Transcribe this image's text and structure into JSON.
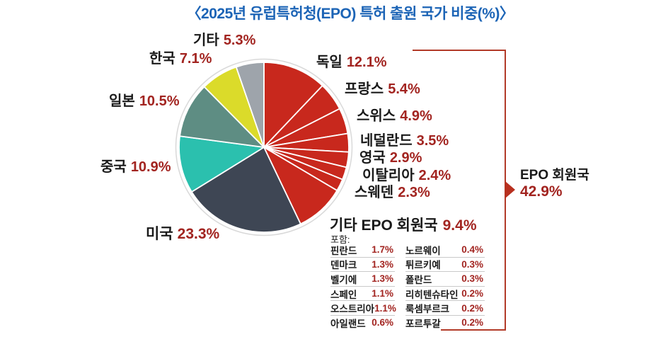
{
  "title": "〈2025년 유럽특허청(EPO) 특허 출원 국가 비중(%)〉",
  "chart_data": {
    "type": "pie",
    "title": "2025년 유럽특허청(EPO) 특허 출원 국가 비중(%)",
    "start_angle_deg_from_12oclock": 0,
    "direction": "clockwise",
    "slices": [
      {
        "label": "독일",
        "value": 12.1,
        "color": "#C8281D",
        "group": "EPO 회원국"
      },
      {
        "label": "프랑스",
        "value": 5.4,
        "color": "#C8281D",
        "group": "EPO 회원국"
      },
      {
        "label": "스위스",
        "value": 4.9,
        "color": "#C8281D",
        "group": "EPO 회원국"
      },
      {
        "label": "네덜란드",
        "value": 3.5,
        "color": "#C8281D",
        "group": "EPO 회원국"
      },
      {
        "label": "영국",
        "value": 2.9,
        "color": "#C8281D",
        "group": "EPO 회원국"
      },
      {
        "label": "이탈리아",
        "value": 2.4,
        "color": "#C8281D",
        "group": "EPO 회원국"
      },
      {
        "label": "스웨덴",
        "value": 2.3,
        "color": "#C8281D",
        "group": "EPO 회원국"
      },
      {
        "label": "기타 EPO 회원국",
        "value": 9.4,
        "color": "#C8281D",
        "group": "EPO 회원국"
      },
      {
        "label": "미국",
        "value": 23.3,
        "color": "#3E4654",
        "group": "비회원국"
      },
      {
        "label": "중국",
        "value": 10.9,
        "color": "#2BC0AE",
        "group": "비회원국"
      },
      {
        "label": "일본",
        "value": 10.5,
        "color": "#5E8D83",
        "group": "비회원국"
      },
      {
        "label": "한국",
        "value": 7.1,
        "color": "#DBDB2A",
        "group": "비회원국"
      },
      {
        "label": "기타",
        "value": 5.3,
        "color": "#9EA4AB",
        "group": "비회원국"
      }
    ],
    "annotation": {
      "label": "EPO 회원국",
      "value_pct": 42.9
    }
  },
  "callouts": {
    "etc": {
      "name": "기타",
      "pct": "5.3%"
    },
    "korea": {
      "name": "한국",
      "pct": "7.1%"
    },
    "japan": {
      "name": "일본",
      "pct": "10.5%"
    },
    "china": {
      "name": "중국",
      "pct": "10.9%"
    },
    "usa": {
      "name": "미국",
      "pct": "23.3%"
    },
    "germany": {
      "name": "독일",
      "pct": "12.1%"
    },
    "france": {
      "name": "프랑스",
      "pct": "5.4%"
    },
    "swiss": {
      "name": "스위스",
      "pct": "4.9%"
    },
    "nether": {
      "name": "네덜란드",
      "pct": "3.5%"
    },
    "uk": {
      "name": "영국",
      "pct": "2.9%"
    },
    "italy": {
      "name": "이탈리아",
      "pct": "2.4%"
    },
    "sweden": {
      "name": "스웨덴",
      "pct": "2.3%"
    }
  },
  "epo_annotation": {
    "line1": "EPO 회원국",
    "line2": "42.9%"
  },
  "sub_table": {
    "header_name": "기타 EPO 회원국",
    "header_pct": "9.4%",
    "include_label": "포함:",
    "left_rows": [
      {
        "name": "핀란드",
        "pct": "1.7%"
      },
      {
        "name": "덴마크",
        "pct": "1.3%"
      },
      {
        "name": "벨기에",
        "pct": "1.3%"
      },
      {
        "name": "스페인",
        "pct": "1.1%"
      },
      {
        "name": "오스트리아",
        "pct": "1.1%"
      },
      {
        "name": "아일랜드",
        "pct": "0.6%"
      }
    ],
    "right_rows": [
      {
        "name": "노르웨이",
        "pct": "0.4%"
      },
      {
        "name": "튀르키예",
        "pct": "0.3%"
      },
      {
        "name": "폴란드",
        "pct": "0.3%"
      },
      {
        "name": "리히텐슈타인",
        "pct": "0.2%"
      },
      {
        "name": "룩셈부르크",
        "pct": "0.2%"
      },
      {
        "name": "포르투갈",
        "pct": "0.2%"
      }
    ]
  },
  "colors": {
    "title_blue": "#1C64B6",
    "text_red": "#A22420",
    "pie_red": "#C8281D",
    "usa_slate": "#3E4654",
    "china_teal": "#2BC0AE",
    "japan_seagreen": "#5E8D83",
    "korea_yellow": "#DBDB2A",
    "etc_gray": "#9EA4AB",
    "bracket_red": "#B23A28"
  }
}
